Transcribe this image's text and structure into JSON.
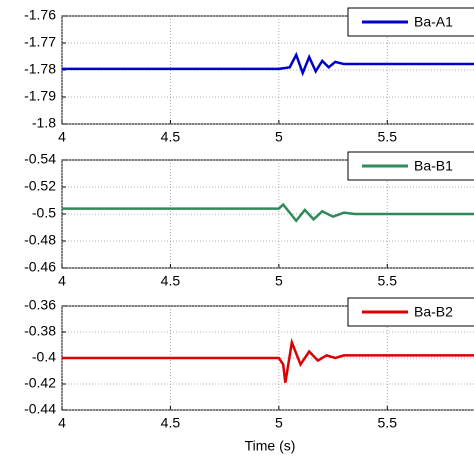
{
  "chart_data": [
    {
      "type": "line",
      "x": [
        4,
        5,
        5.05,
        5.08,
        5.11,
        5.14,
        5.17,
        5.2,
        5.23,
        5.26,
        5.3,
        5.9
      ],
      "series": [
        {
          "name": "Ba-A1",
          "color": "#0000cc",
          "values": [
            -1.7796,
            -1.7796,
            -1.779,
            -1.7744,
            -1.7811,
            -1.7752,
            -1.7805,
            -1.7766,
            -1.779,
            -1.777,
            -1.7778,
            -1.7778
          ]
        }
      ],
      "xlim": [
        4,
        5.9
      ],
      "xticks": [
        4,
        4.5,
        5,
        5.5
      ],
      "ylim": [
        -1.8,
        -1.76
      ],
      "yticks": [
        -1.8,
        -1.79,
        -1.78,
        -1.77,
        -1.76
      ],
      "y_reversed": false,
      "grid": true
    },
    {
      "type": "line",
      "x": [
        4,
        5,
        5.02,
        5.05,
        5.08,
        5.12,
        5.16,
        5.2,
        5.25,
        5.3,
        5.35,
        5.9
      ],
      "series": [
        {
          "name": "Ba-B1",
          "color": "#2f8a5a",
          "values": [
            -0.504,
            -0.504,
            -0.507,
            -0.501,
            -0.495,
            -0.503,
            -0.496,
            -0.502,
            -0.498,
            -0.501,
            -0.5,
            -0.5
          ]
        }
      ],
      "xlim": [
        4,
        5.9
      ],
      "xticks": [
        4,
        4.5,
        5,
        5.5
      ],
      "ylim": [
        -0.54,
        -0.46
      ],
      "yticks": [
        -0.54,
        -0.52,
        -0.5,
        -0.48,
        -0.46
      ],
      "y_reversed": true,
      "grid": true
    },
    {
      "type": "line",
      "x": [
        4,
        5,
        5.02,
        5.03,
        5.06,
        5.1,
        5.14,
        5.18,
        5.22,
        5.26,
        5.3,
        5.9
      ],
      "series": [
        {
          "name": "Ba-B2",
          "color": "#dd0000",
          "values": [
            -0.4,
            -0.4,
            -0.405,
            -0.419,
            -0.388,
            -0.405,
            -0.395,
            -0.402,
            -0.398,
            -0.4,
            -0.398,
            -0.398
          ]
        }
      ],
      "xlim": [
        4,
        5.9
      ],
      "xticks": [
        4,
        4.5,
        5,
        5.5
      ],
      "ylim": [
        -0.44,
        -0.36
      ],
      "yticks": [
        -0.44,
        -0.42,
        -0.4,
        -0.38,
        -0.36
      ],
      "y_reversed": false,
      "grid": true,
      "xlabel": "Time (s)"
    }
  ]
}
